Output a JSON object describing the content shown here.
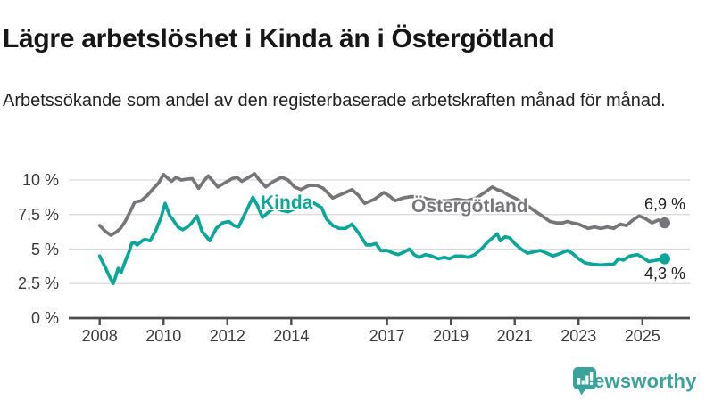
{
  "chart_data": {
    "type": "line",
    "title": "Lägre arbetslöshet i Kinda än i Östergötland",
    "subtitle": "Arbetssökande som andel av den registerbaserade arbetskraften månad för månad.",
    "unit": "%",
    "xlim": [
      2007.0,
      2026.5
    ],
    "ylim": [
      0,
      11
    ],
    "grid": "horizontal",
    "legend": "inline-labels",
    "x_ticks": [
      {
        "value": 2008,
        "label": "2008"
      },
      {
        "value": 2010,
        "label": "2010"
      },
      {
        "value": 2012,
        "label": "2012"
      },
      {
        "value": 2014,
        "label": "2014"
      },
      {
        "value": 2017,
        "label": "2017"
      },
      {
        "value": 2019,
        "label": "2019"
      },
      {
        "value": 2021,
        "label": "2021"
      },
      {
        "value": 2023,
        "label": "2023"
      },
      {
        "value": 2025,
        "label": "2025"
      }
    ],
    "y_ticks": [
      {
        "value": 10,
        "label": "10 %"
      },
      {
        "value": 7.5,
        "label": "7,5 %"
      },
      {
        "value": 5,
        "label": "5 %"
      },
      {
        "value": 2.5,
        "label": "2,5 %"
      },
      {
        "value": 0,
        "label": "0 %"
      }
    ],
    "series": [
      {
        "name": "Kinda",
        "color": "#0ba69a",
        "end_label": "4,3 %",
        "end_value": 4.3,
        "points": [
          [
            2008.0,
            4.5
          ],
          [
            2008.08,
            4.1
          ],
          [
            2008.17,
            3.7
          ],
          [
            2008.25,
            3.3
          ],
          [
            2008.42,
            2.5
          ],
          [
            2008.5,
            3.0
          ],
          [
            2008.58,
            3.6
          ],
          [
            2008.67,
            3.3
          ],
          [
            2008.75,
            3.8
          ],
          [
            2008.92,
            4.8
          ],
          [
            2009.0,
            5.4
          ],
          [
            2009.08,
            5.5
          ],
          [
            2009.17,
            5.3
          ],
          [
            2009.33,
            5.6
          ],
          [
            2009.42,
            5.7
          ],
          [
            2009.58,
            5.6
          ],
          [
            2009.75,
            6.3
          ],
          [
            2009.92,
            7.3
          ],
          [
            2010.05,
            8.3
          ],
          [
            2010.2,
            7.4
          ],
          [
            2010.3,
            7.1
          ],
          [
            2010.45,
            6.6
          ],
          [
            2010.6,
            6.4
          ],
          [
            2010.75,
            6.6
          ],
          [
            2010.85,
            6.8
          ],
          [
            2011.05,
            7.4
          ],
          [
            2011.2,
            6.3
          ],
          [
            2011.45,
            5.6
          ],
          [
            2011.65,
            6.5
          ],
          [
            2011.85,
            6.9
          ],
          [
            2012.05,
            7.0
          ],
          [
            2012.2,
            6.7
          ],
          [
            2012.35,
            6.6
          ],
          [
            2012.6,
            7.8
          ],
          [
            2012.8,
            8.75
          ],
          [
            2012.95,
            8.1
          ],
          [
            2013.1,
            7.3
          ],
          [
            2013.3,
            7.7
          ],
          [
            2013.5,
            8.0
          ],
          [
            2013.7,
            7.8
          ],
          [
            2013.9,
            7.7
          ],
          [
            2014.1,
            7.9
          ],
          [
            2014.35,
            8.1
          ],
          [
            2014.6,
            8.5
          ],
          [
            2014.8,
            8.2
          ],
          [
            2014.95,
            8.0
          ],
          [
            2015.1,
            7.2
          ],
          [
            2015.3,
            6.7
          ],
          [
            2015.5,
            6.5
          ],
          [
            2015.7,
            6.5
          ],
          [
            2015.9,
            6.8
          ],
          [
            2016.1,
            6.2
          ],
          [
            2016.35,
            5.3
          ],
          [
            2016.5,
            5.3
          ],
          [
            2016.65,
            5.4
          ],
          [
            2016.8,
            4.9
          ],
          [
            2017.0,
            4.9
          ],
          [
            2017.2,
            4.7
          ],
          [
            2017.35,
            4.6
          ],
          [
            2017.55,
            4.8
          ],
          [
            2017.7,
            5.0
          ],
          [
            2017.85,
            4.6
          ],
          [
            2018.0,
            4.4
          ],
          [
            2018.2,
            4.6
          ],
          [
            2018.4,
            4.5
          ],
          [
            2018.6,
            4.3
          ],
          [
            2018.8,
            4.4
          ],
          [
            2018.95,
            4.3
          ],
          [
            2019.15,
            4.5
          ],
          [
            2019.35,
            4.5
          ],
          [
            2019.55,
            4.4
          ],
          [
            2019.75,
            4.6
          ],
          [
            2019.95,
            5.0
          ],
          [
            2020.15,
            5.5
          ],
          [
            2020.3,
            5.8
          ],
          [
            2020.45,
            6.1
          ],
          [
            2020.55,
            5.6
          ],
          [
            2020.7,
            5.9
          ],
          [
            2020.85,
            5.8
          ],
          [
            2021.0,
            5.4
          ],
          [
            2021.2,
            5.0
          ],
          [
            2021.4,
            4.7
          ],
          [
            2021.6,
            4.8
          ],
          [
            2021.8,
            4.9
          ],
          [
            2022.0,
            4.7
          ],
          [
            2022.2,
            4.5
          ],
          [
            2022.45,
            4.7
          ],
          [
            2022.65,
            4.9
          ],
          [
            2022.8,
            4.7
          ],
          [
            2023.0,
            4.3
          ],
          [
            2023.2,
            4.0
          ],
          [
            2023.45,
            3.9
          ],
          [
            2023.7,
            3.85
          ],
          [
            2023.95,
            3.9
          ],
          [
            2024.1,
            3.9
          ],
          [
            2024.25,
            4.3
          ],
          [
            2024.4,
            4.2
          ],
          [
            2024.6,
            4.5
          ],
          [
            2024.85,
            4.6
          ],
          [
            2025.0,
            4.4
          ],
          [
            2025.2,
            4.1
          ],
          [
            2025.45,
            4.2
          ],
          [
            2025.7,
            4.3
          ]
        ]
      },
      {
        "name": "Östergötland",
        "color": "#76767a",
        "end_label": "6,9 %",
        "end_value": 6.9,
        "points": [
          [
            2008.0,
            6.7
          ],
          [
            2008.17,
            6.3
          ],
          [
            2008.35,
            6.0
          ],
          [
            2008.5,
            6.2
          ],
          [
            2008.65,
            6.5
          ],
          [
            2008.8,
            7.0
          ],
          [
            2008.95,
            7.7
          ],
          [
            2009.1,
            8.4
          ],
          [
            2009.3,
            8.5
          ],
          [
            2009.5,
            8.9
          ],
          [
            2009.65,
            9.3
          ],
          [
            2009.85,
            9.8
          ],
          [
            2010.0,
            10.4
          ],
          [
            2010.15,
            10.1
          ],
          [
            2010.25,
            9.9
          ],
          [
            2010.4,
            10.2
          ],
          [
            2010.55,
            10.0
          ],
          [
            2010.7,
            10.05
          ],
          [
            2010.9,
            10.1
          ],
          [
            2011.1,
            9.4
          ],
          [
            2011.25,
            9.9
          ],
          [
            2011.4,
            10.3
          ],
          [
            2011.55,
            9.9
          ],
          [
            2011.7,
            9.5
          ],
          [
            2011.85,
            9.7
          ],
          [
            2012.0,
            9.9
          ],
          [
            2012.15,
            10.1
          ],
          [
            2012.3,
            10.2
          ],
          [
            2012.45,
            9.9
          ],
          [
            2012.6,
            10.1
          ],
          [
            2012.85,
            10.45
          ],
          [
            2013.0,
            10.0
          ],
          [
            2013.2,
            9.5
          ],
          [
            2013.45,
            9.9
          ],
          [
            2013.7,
            10.2
          ],
          [
            2013.9,
            10.0
          ],
          [
            2014.1,
            9.5
          ],
          [
            2014.3,
            9.3
          ],
          [
            2014.55,
            9.6
          ],
          [
            2014.8,
            9.6
          ],
          [
            2015.0,
            9.4
          ],
          [
            2015.3,
            8.7
          ],
          [
            2015.6,
            9.0
          ],
          [
            2015.9,
            9.3
          ],
          [
            2016.1,
            8.9
          ],
          [
            2016.3,
            8.3
          ],
          [
            2016.6,
            8.6
          ],
          [
            2016.9,
            9.1
          ],
          [
            2017.1,
            8.8
          ],
          [
            2017.25,
            8.5
          ],
          [
            2017.5,
            8.7
          ],
          [
            2017.75,
            8.8
          ],
          [
            2018.0,
            8.8
          ],
          [
            2018.3,
            8.6
          ],
          [
            2018.6,
            8.5
          ],
          [
            2018.9,
            8.5
          ],
          [
            2019.2,
            8.6
          ],
          [
            2019.5,
            8.5
          ],
          [
            2019.8,
            8.7
          ],
          [
            2020.0,
            9.0
          ],
          [
            2020.3,
            9.5
          ],
          [
            2020.45,
            9.3
          ],
          [
            2020.6,
            9.2
          ],
          [
            2020.8,
            8.9
          ],
          [
            2021.0,
            8.7
          ],
          [
            2021.3,
            8.3
          ],
          [
            2021.6,
            7.8
          ],
          [
            2021.8,
            7.5
          ],
          [
            2022.1,
            7.0
          ],
          [
            2022.3,
            6.9
          ],
          [
            2022.5,
            6.9
          ],
          [
            2022.65,
            7.0
          ],
          [
            2022.8,
            6.9
          ],
          [
            2023.0,
            6.8
          ],
          [
            2023.3,
            6.5
          ],
          [
            2023.5,
            6.6
          ],
          [
            2023.7,
            6.5
          ],
          [
            2023.9,
            6.6
          ],
          [
            2024.1,
            6.5
          ],
          [
            2024.3,
            6.8
          ],
          [
            2024.5,
            6.7
          ],
          [
            2024.7,
            7.1
          ],
          [
            2024.9,
            7.4
          ],
          [
            2025.1,
            7.2
          ],
          [
            2025.3,
            6.9
          ],
          [
            2025.5,
            7.1
          ],
          [
            2025.7,
            6.9
          ]
        ]
      }
    ]
  },
  "colors": {
    "kinda": "#0ba69a",
    "ostergotland": "#76767a",
    "grid": "#d9d9d9",
    "axis": "#4c4c4c",
    "tick_text": "#3a3a3a",
    "title_text": "#161616",
    "subtitle_text": "#222222",
    "value_text": "#222222",
    "logo": "#3ba29b"
  },
  "logo": {
    "label": "Newsworthy"
  }
}
